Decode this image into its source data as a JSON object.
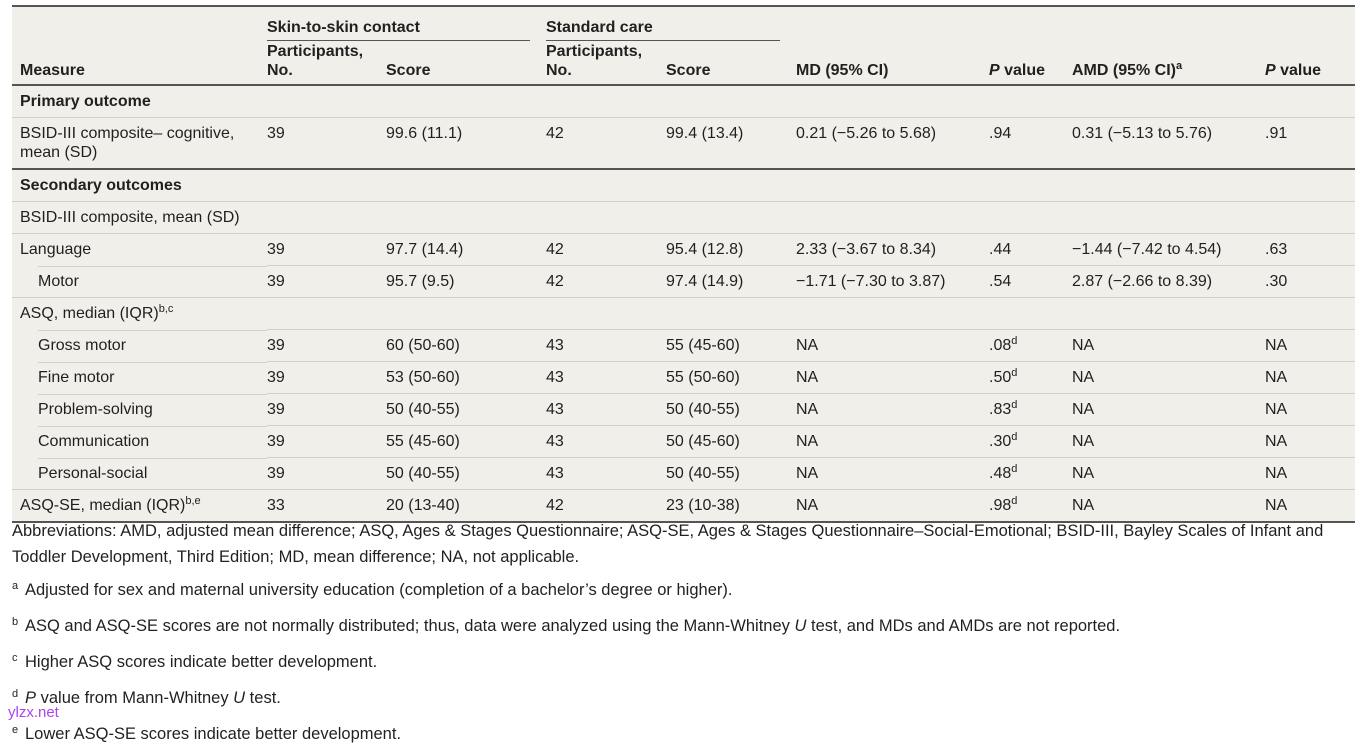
{
  "table": {
    "group_headers": [
      "Skin-to-skin contact",
      "Standard care"
    ],
    "columns": {
      "measure": "Measure",
      "participants": "Participants, No.",
      "score": "Score",
      "participants_line1": "Participants,",
      "participants_line2": "No.",
      "md": "MD (95% CI)",
      "p_italic": "P",
      "p_rest": " value",
      "amd": "AMD (95% CI)",
      "amd_sup": "a"
    },
    "rows": [
      {
        "measure": "Primary outcome",
        "section": true
      },
      {
        "measure": "BSID-III composite– cognitive,",
        "measure2": "mean (SD)",
        "ssc_n": "39",
        "ssc_score": "99.6 (11.1)",
        "sc_n": "42",
        "sc_score": "99.4 (13.4)",
        "md": "0.21 (−5.26 to 5.68)",
        "p1": ".94",
        "amd": "0.31 (−5.13 to 5.76)",
        "p2": ".91"
      },
      {
        "measure": "Secondary outcomes",
        "section": true
      },
      {
        "measure": "BSID-III composite, mean (SD)"
      },
      {
        "measure": "Language",
        "ssc_n": "39",
        "ssc_score": "97.7 (14.4)",
        "sc_n": "42",
        "sc_score": "95.4 (12.8)",
        "md": "2.33 (−3.67 to 8.34)",
        "p1": ".44",
        "amd": "−1.44 (−7.42 to 4.54)",
        "p2": ".63"
      },
      {
        "measure": "Motor",
        "ssc_n": "39",
        "ssc_score": "95.7 (9.5)",
        "sc_n": "42",
        "sc_score": "97.4 (14.9)",
        "md": "−1.71 (−7.30 to 3.87)",
        "p1": ".54",
        "amd": "2.87 (−2.66 to 8.39)",
        "p2": ".30"
      },
      {
        "measure": "ASQ, median (IQR)",
        "sup": "b,c"
      },
      {
        "measure": "Gross motor",
        "ssc_n": "39",
        "ssc_score": "60 (50-60)",
        "sc_n": "43",
        "sc_score": "55 (45-60)",
        "md": "NA",
        "p1": ".08",
        "p1_sup": "d",
        "amd": "NA",
        "p2": "NA"
      },
      {
        "measure": "Fine motor",
        "ssc_n": "39",
        "ssc_score": "53 (50-60)",
        "sc_n": "43",
        "sc_score": "55 (50-60)",
        "md": "NA",
        "p1": ".50",
        "p1_sup": "d",
        "amd": "NA",
        "p2": "NA"
      },
      {
        "measure": "Problem-solving",
        "ssc_n": "39",
        "ssc_score": "50 (40-55)",
        "sc_n": "43",
        "sc_score": "50 (40-55)",
        "md": "NA",
        "p1": ".83",
        "p1_sup": "d",
        "amd": "NA",
        "p2": "NA"
      },
      {
        "measure": "Communication",
        "ssc_n": "39",
        "ssc_score": "55 (45-60)",
        "sc_n": "43",
        "sc_score": "50 (45-60)",
        "md": "NA",
        "p1": ".30",
        "p1_sup": "d",
        "amd": "NA",
        "p2": "NA"
      },
      {
        "measure": "Personal-social",
        "ssc_n": "39",
        "ssc_score": "50 (40-55)",
        "sc_n": "43",
        "sc_score": "50 (40-55)",
        "md": "NA",
        "p1": ".48",
        "p1_sup": "d",
        "amd": "NA",
        "p2": "NA"
      },
      {
        "measure": "ASQ-SE, median (IQR)",
        "sup": "b,e",
        "ssc_n": "33",
        "ssc_score": "20 (13-40)",
        "sc_n": "42",
        "sc_score": "23 (10-38)",
        "md": "NA",
        "p1": ".98",
        "p1_sup": "d",
        "amd": "NA",
        "p2": "NA"
      }
    ]
  },
  "footnotes": {
    "abbreviations": "Abbreviations: AMD, adjusted mean difference; ASQ, Ages & Stages Questionnaire; ASQ-SE, Ages & Stages Questionnaire–Social-Emotional; BSID-III, Bayley Scales of Infant and Toddler Development, Third Edition; MD, mean difference; NA, not applicable.",
    "a": {
      "mark": "a",
      "text": "Adjusted for sex and maternal university education (completion of a bachelor’s degree or higher)."
    },
    "b": {
      "mark": "b",
      "text1": "ASQ and ASQ-SE scores are not normally distributed; thus, data were analyzed using the Mann-Whitney ",
      "italic": "U",
      "text2": " test, and MDs and AMDs are not reported."
    },
    "c": {
      "mark": "c",
      "text": "Higher ASQ scores indicate better development."
    },
    "d": {
      "mark": "d",
      "italic1": "P",
      "text1": " value from Mann-Whitney ",
      "italic2": "U",
      "text2": " test."
    },
    "e": {
      "mark": "e",
      "text": "Lower ASQ-SE scores indicate better development."
    }
  },
  "watermark": "ylzx.net",
  "colors": {
    "table_bg": "#f1efe9",
    "rule": "#555555",
    "watermark": "#a020f0"
  }
}
